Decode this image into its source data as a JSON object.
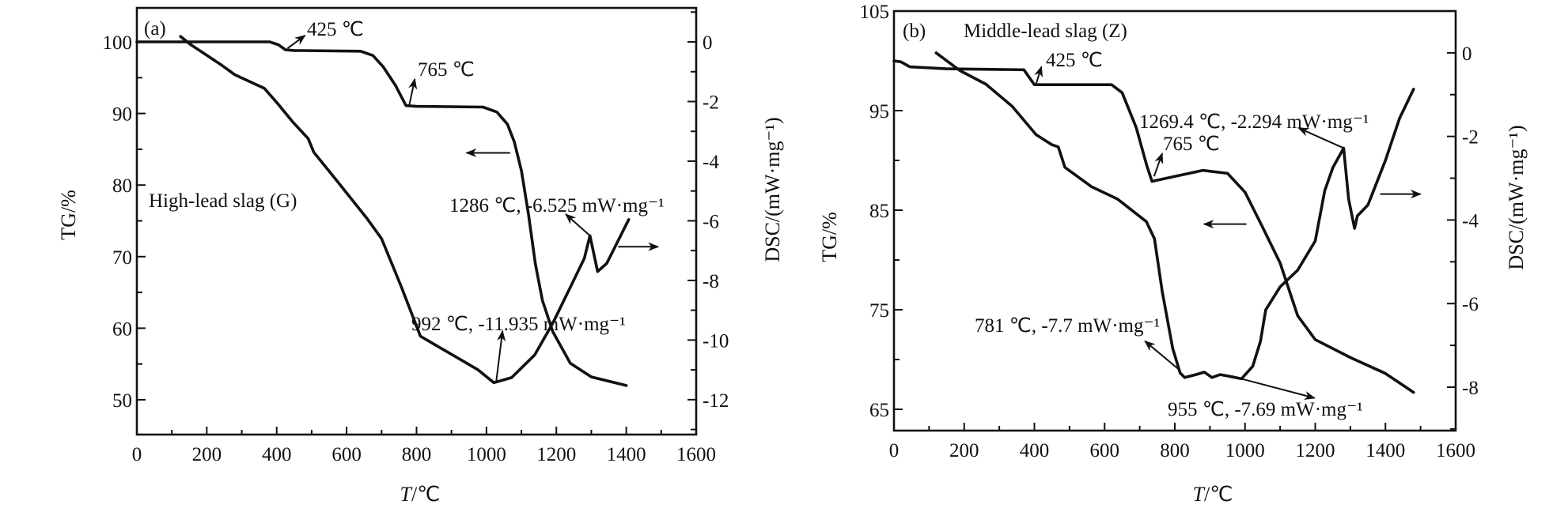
{
  "chart_data": [
    {
      "panel_label": "(a)",
      "type": "line",
      "sample": "High-lead slag (G)",
      "xlabel_var": "T",
      "xlabel_unit": "/℃",
      "ylabel_left": "TG/%",
      "ylabel_right": "DSC/(mW·mg⁻¹)",
      "xlim": [
        0,
        1600
      ],
      "xticks": [
        0,
        200,
        400,
        600,
        800,
        1000,
        1200,
        1400,
        1600
      ],
      "xminor_step": 100,
      "ylim_left": [
        45.14,
        104.75
      ],
      "yticks_left": [
        50,
        60,
        70,
        80,
        90,
        100
      ],
      "yminor_step_left": 5,
      "ylim_right": [
        -13.17,
        1.14
      ],
      "yticks_right": [
        -12,
        -10,
        -8,
        -6,
        -4,
        -2,
        0
      ],
      "yminor_step_right": 1,
      "series": [
        {
          "name": "TG",
          "axis": "left",
          "points": [
            [
              0,
              100
            ],
            [
              380,
              100
            ],
            [
              405,
              99.6
            ],
            [
              425,
              98.9
            ],
            [
              450,
              98.8
            ],
            [
              640,
              98.7
            ],
            [
              675,
              98.1
            ],
            [
              705,
              96.5
            ],
            [
              740,
              93.9
            ],
            [
              770,
              91.1
            ],
            [
              800,
              91
            ],
            [
              990,
              90.9
            ],
            [
              1030,
              90.2
            ],
            [
              1060,
              88.5
            ],
            [
              1080,
              86
            ],
            [
              1100,
              82
            ],
            [
              1120,
              76
            ],
            [
              1140,
              69
            ],
            [
              1160,
              63.9
            ],
            [
              1190,
              59.5
            ],
            [
              1240,
              55.1
            ],
            [
              1300,
              53.2
            ],
            [
              1400,
              52.0
            ]
          ]
        },
        {
          "name": "DSC",
          "axis": "right",
          "points": [
            [
              125,
              0.18
            ],
            [
              155,
              -0.1
            ],
            [
              240,
              -0.76
            ],
            [
              280,
              -1.1
            ],
            [
              365,
              -1.56
            ],
            [
              405,
              -2.1
            ],
            [
              447,
              -2.7
            ],
            [
              490,
              -3.24
            ],
            [
              506,
              -3.7
            ],
            [
              575,
              -4.7
            ],
            [
              657,
              -5.9
            ],
            [
              700,
              -6.6
            ],
            [
              756,
              -8.2
            ],
            [
              811,
              -9.87
            ],
            [
              830,
              -10.0
            ],
            [
              859,
              -10.2
            ],
            [
              903,
              -10.5
            ],
            [
              976,
              -11.0
            ],
            [
              1021,
              -11.43
            ],
            [
              1072,
              -11.26
            ],
            [
              1138,
              -10.5
            ],
            [
              1190,
              -9.43
            ],
            [
              1241,
              -8.2
            ],
            [
              1280,
              -7.26
            ],
            [
              1296,
              -6.5
            ],
            [
              1318,
              -7.7
            ],
            [
              1344,
              -7.43
            ],
            [
              1407,
              -5.96
            ]
          ]
        }
      ],
      "annotations": [
        {
          "text": "425 ℃",
          "axis": "left",
          "from": [
            431,
            99.1
          ],
          "to": [
            481,
            100.9
          ]
        },
        {
          "text": "765 ℃",
          "axis": "left",
          "from": [
            779,
            91.1
          ],
          "to": [
            795,
            94.8
          ]
        },
        {
          "text": "1286 ℃, -6.525 mW·mg⁻¹",
          "axis": "right",
          "from": [
            1296,
            -6.5
          ],
          "to": [
            1227,
            -5.78
          ]
        },
        {
          "text": "992 ℃, -11.935 mW·mg⁻¹",
          "axis": "right",
          "from": [
            1028,
            -11.39
          ],
          "to": [
            1046,
            -9.7
          ]
        }
      ],
      "axis_arrows": [
        {
          "series": "TG",
          "direction": "left",
          "axis": "left",
          "from": [
            1068,
            84.5
          ],
          "to": [
            943,
            84.5
          ]
        },
        {
          "series": "DSC",
          "direction": "right",
          "axis": "right",
          "from": [
            1377,
            -6.87
          ],
          "to": [
            1491,
            -6.87
          ]
        }
      ]
    },
    {
      "panel_label": "(b)",
      "type": "line",
      "sample": "Middle-lead slag (Z)",
      "xlabel_var": "T",
      "xlabel_unit": "/℃",
      "ylabel_left": "TG/%",
      "ylabel_right": "DSC/(mW·mg⁻¹)",
      "xlim": [
        0,
        1600
      ],
      "xticks": [
        0,
        200,
        400,
        600,
        800,
        1000,
        1200,
        1400,
        1600
      ],
      "xminor_step": 100,
      "ylim_left": [
        62.86,
        105
      ],
      "yticks_left": [
        65,
        75,
        85,
        95,
        105
      ],
      "yminor_step_left": 5,
      "ylim_right": [
        -9.04,
        1.0
      ],
      "yticks_right": [
        -8,
        -6,
        -4,
        -2,
        0
      ],
      "yminor_step_right": 1,
      "series": [
        {
          "name": "TG",
          "axis": "left",
          "points": [
            [
              0,
              100
            ],
            [
              20,
              99.9
            ],
            [
              45,
              99.4
            ],
            [
              150,
              99.2
            ],
            [
              370,
              99.1
            ],
            [
              400,
              97.6
            ],
            [
              620,
              97.6
            ],
            [
              650,
              96.8
            ],
            [
              690,
              93.3
            ],
            [
              720,
              89.5
            ],
            [
              735,
              87.9
            ],
            [
              800,
              88.4
            ],
            [
              880,
              89.0
            ],
            [
              950,
              88.7
            ],
            [
              1000,
              86.8
            ],
            [
              1050,
              83.3
            ],
            [
              1100,
              79.7
            ],
            [
              1150,
              74.4
            ],
            [
              1200,
              72.0
            ],
            [
              1300,
              70.2
            ],
            [
              1400,
              68.6
            ],
            [
              1480,
              66.7
            ]
          ]
        },
        {
          "name": "DSC",
          "axis": "right",
          "points": [
            [
              120,
              0
            ],
            [
              187,
              -0.42
            ],
            [
              262,
              -0.75
            ],
            [
              337,
              -1.28
            ],
            [
              405,
              -1.96
            ],
            [
              450,
              -2.2
            ],
            [
              468,
              -2.25
            ],
            [
              487,
              -2.74
            ],
            [
              562,
              -3.2
            ],
            [
              637,
              -3.5
            ],
            [
              719,
              -4.04
            ],
            [
              742,
              -4.45
            ],
            [
              764,
              -5.7
            ],
            [
              794,
              -7.07
            ],
            [
              815,
              -7.66
            ],
            [
              828,
              -7.77
            ],
            [
              860,
              -7.7
            ],
            [
              884,
              -7.64
            ],
            [
              906,
              -7.77
            ],
            [
              929,
              -7.7
            ],
            [
              955,
              -7.74
            ],
            [
              990,
              -7.8
            ],
            [
              1022,
              -7.5
            ],
            [
              1044,
              -6.9
            ],
            [
              1059,
              -6.15
            ],
            [
              1100,
              -5.6
            ],
            [
              1150,
              -5.2
            ],
            [
              1200,
              -4.5
            ],
            [
              1227,
              -3.3
            ],
            [
              1250,
              -2.75
            ],
            [
              1281,
              -2.28
            ],
            [
              1295,
              -3.5
            ],
            [
              1312,
              -4.2
            ],
            [
              1320,
              -3.9
            ],
            [
              1350,
              -3.64
            ],
            [
              1400,
              -2.57
            ],
            [
              1440,
              -1.57
            ],
            [
              1480,
              -0.87
            ]
          ]
        }
      ],
      "annotations": [
        {
          "text": "425 ℃",
          "axis": "left",
          "from": [
            405,
            97.7
          ],
          "to": [
            420,
            99.4
          ]
        },
        {
          "text": "1269.4 ℃, -2.294 mW·mg⁻¹",
          "axis": "right",
          "from": [
            1281,
            -2.28
          ],
          "to": [
            1153,
            -1.8
          ]
        },
        {
          "text": "765 ℃",
          "axis": "left",
          "from": [
            741,
            88.4
          ],
          "to": [
            764,
            90.7
          ]
        },
        {
          "text": "781 ℃, -7.7 mW·mg⁻¹",
          "axis": "right",
          "from": [
            815,
            -7.6
          ],
          "to": [
            715,
            -6.9
          ]
        },
        {
          "text": "955 ℃, -7.69 mW·mg⁻¹",
          "axis": "right",
          "from": [
            990,
            -7.8
          ],
          "to": [
            1198,
            -8.26
          ]
        }
      ],
      "axis_arrows": [
        {
          "series": "TG",
          "direction": "left",
          "axis": "left",
          "from": [
            1004,
            83.6
          ],
          "to": [
            883,
            83.6
          ]
        },
        {
          "series": "DSC",
          "direction": "right",
          "axis": "right",
          "from": [
            1385,
            -3.38
          ],
          "to": [
            1500,
            -3.38
          ]
        }
      ]
    }
  ]
}
